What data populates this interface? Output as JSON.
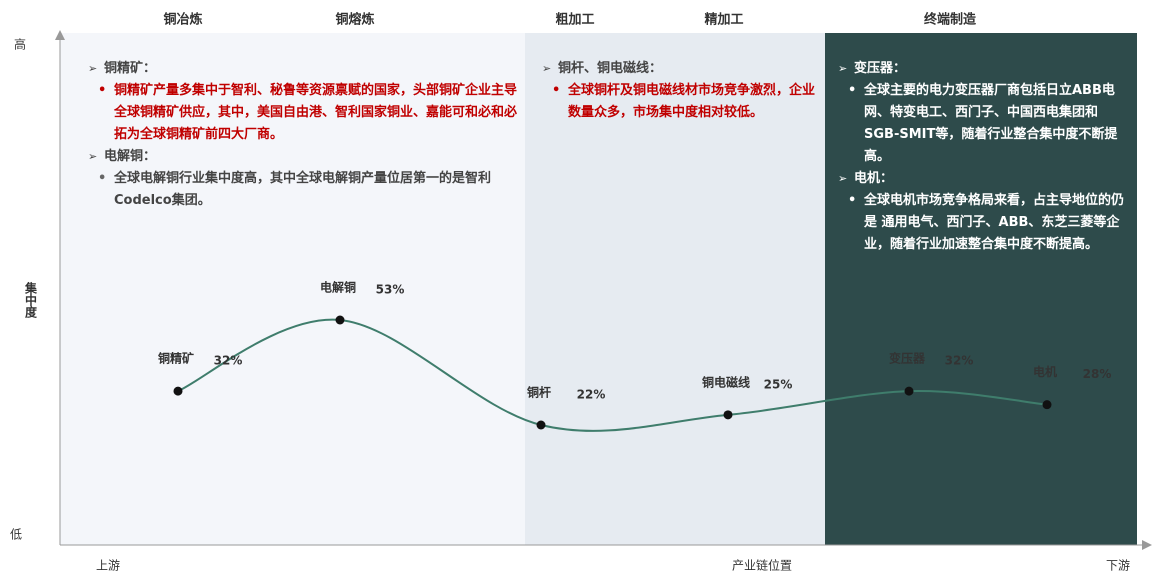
{
  "chart_data": {
    "type": "line",
    "stages": [
      "铜冶炼",
      "铜熔炼",
      "粗加工",
      "精加工",
      "终端制造"
    ],
    "y_axis": {
      "high": "高",
      "label": "集中度",
      "low": "低"
    },
    "x_axis": {
      "start": "上游",
      "label": "产业链位置",
      "end": "下游"
    },
    "categories": [
      "铜精矿",
      "电解铜",
      "铜杆",
      "铜电磁线",
      "变压器",
      "电机"
    ],
    "values": [
      32,
      53,
      22,
      25,
      32,
      28
    ],
    "value_labels": [
      "32%",
      "53%",
      "22%",
      "25%",
      "32%",
      "28%"
    ],
    "color": "#3f7d6c",
    "panels": [
      {
        "sections": [
          {
            "heading": "铜精矿：",
            "text": "铜精矿产量多集中于智利、秘鲁等资源禀赋的国家，头部铜矿企业主导全球铜精矿供应，其中，美国自由港、智利国家铜业、嘉能可和必和必拓为全球铜精矿前四大厂商。"
          },
          {
            "heading": "电解铜：",
            "text": "全球电解铜行业集中度高，其中全球电解铜产量位居第一的是智利Codelco集团。"
          }
        ]
      },
      {
        "sections": [
          {
            "heading": "铜杆、铜电磁线：",
            "text": "全球铜杆及铜电磁线材市场竞争激烈，企业数量众多，市场集中度相对较低。"
          }
        ]
      },
      {
        "sections": [
          {
            "heading": "变压器：",
            "text": "全球主要的电力变压器厂商包括日立ABB电网、特变电工、西门子、中国西电集团和SGB-SMIT等，随着行业整合集中度不断提高。"
          },
          {
            "heading": "电机：",
            "text": "全球电机市场竞争格局来看，占主导地位的仍是 通用电气、西门子、ABB、东芝三菱等企业，随着行业加速整合集中度不断提高。"
          }
        ]
      }
    ]
  }
}
